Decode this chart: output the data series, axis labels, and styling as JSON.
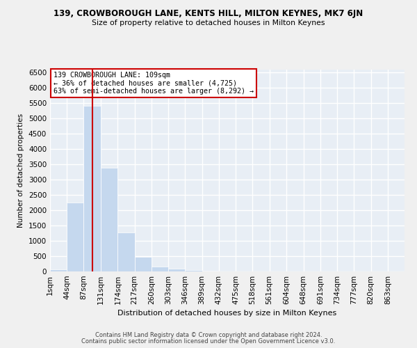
{
  "title1": "139, CROWBOROUGH LANE, KENTS HILL, MILTON KEYNES, MK7 6JN",
  "title2": "Size of property relative to detached houses in Milton Keynes",
  "xlabel": "Distribution of detached houses by size in Milton Keynes",
  "ylabel": "Number of detached properties",
  "footnote1": "Contains HM Land Registry data © Crown copyright and database right 2024.",
  "footnote2": "Contains public sector information licensed under the Open Government Licence v3.0.",
  "bar_color": "#c5d8ee",
  "bg_color": "#e8eef5",
  "grid_color": "#ffffff",
  "vline_color": "#cc0000",
  "annotation_box_color": "#cc0000",
  "tick_labels": [
    "1sqm",
    "44sqm",
    "87sqm",
    "131sqm",
    "174sqm",
    "217sqm",
    "260sqm",
    "303sqm",
    "346sqm",
    "389sqm",
    "432sqm",
    "475sqm",
    "518sqm",
    "561sqm",
    "604sqm",
    "648sqm",
    "691sqm",
    "734sqm",
    "777sqm",
    "820sqm",
    "863sqm"
  ],
  "bin_edges": [
    1,
    44,
    87,
    131,
    174,
    217,
    260,
    303,
    346,
    389,
    432,
    475,
    518,
    561,
    604,
    648,
    691,
    734,
    777,
    820,
    863
  ],
  "bar_heights": [
    70,
    2260,
    5420,
    3380,
    1280,
    470,
    165,
    85,
    55,
    25,
    10,
    5,
    3,
    2,
    1,
    1,
    0,
    0,
    0,
    0
  ],
  "property_size": 109,
  "annotation_text": "139 CROWBOROUGH LANE: 109sqm\n← 36% of detached houses are smaller (4,725)\n63% of semi-detached houses are larger (8,292) →",
  "ylim": [
    0,
    6600
  ],
  "yticks": [
    0,
    500,
    1000,
    1500,
    2000,
    2500,
    3000,
    3500,
    4000,
    4500,
    5000,
    5500,
    6000,
    6500
  ],
  "fig_bg": "#f0f0f0"
}
